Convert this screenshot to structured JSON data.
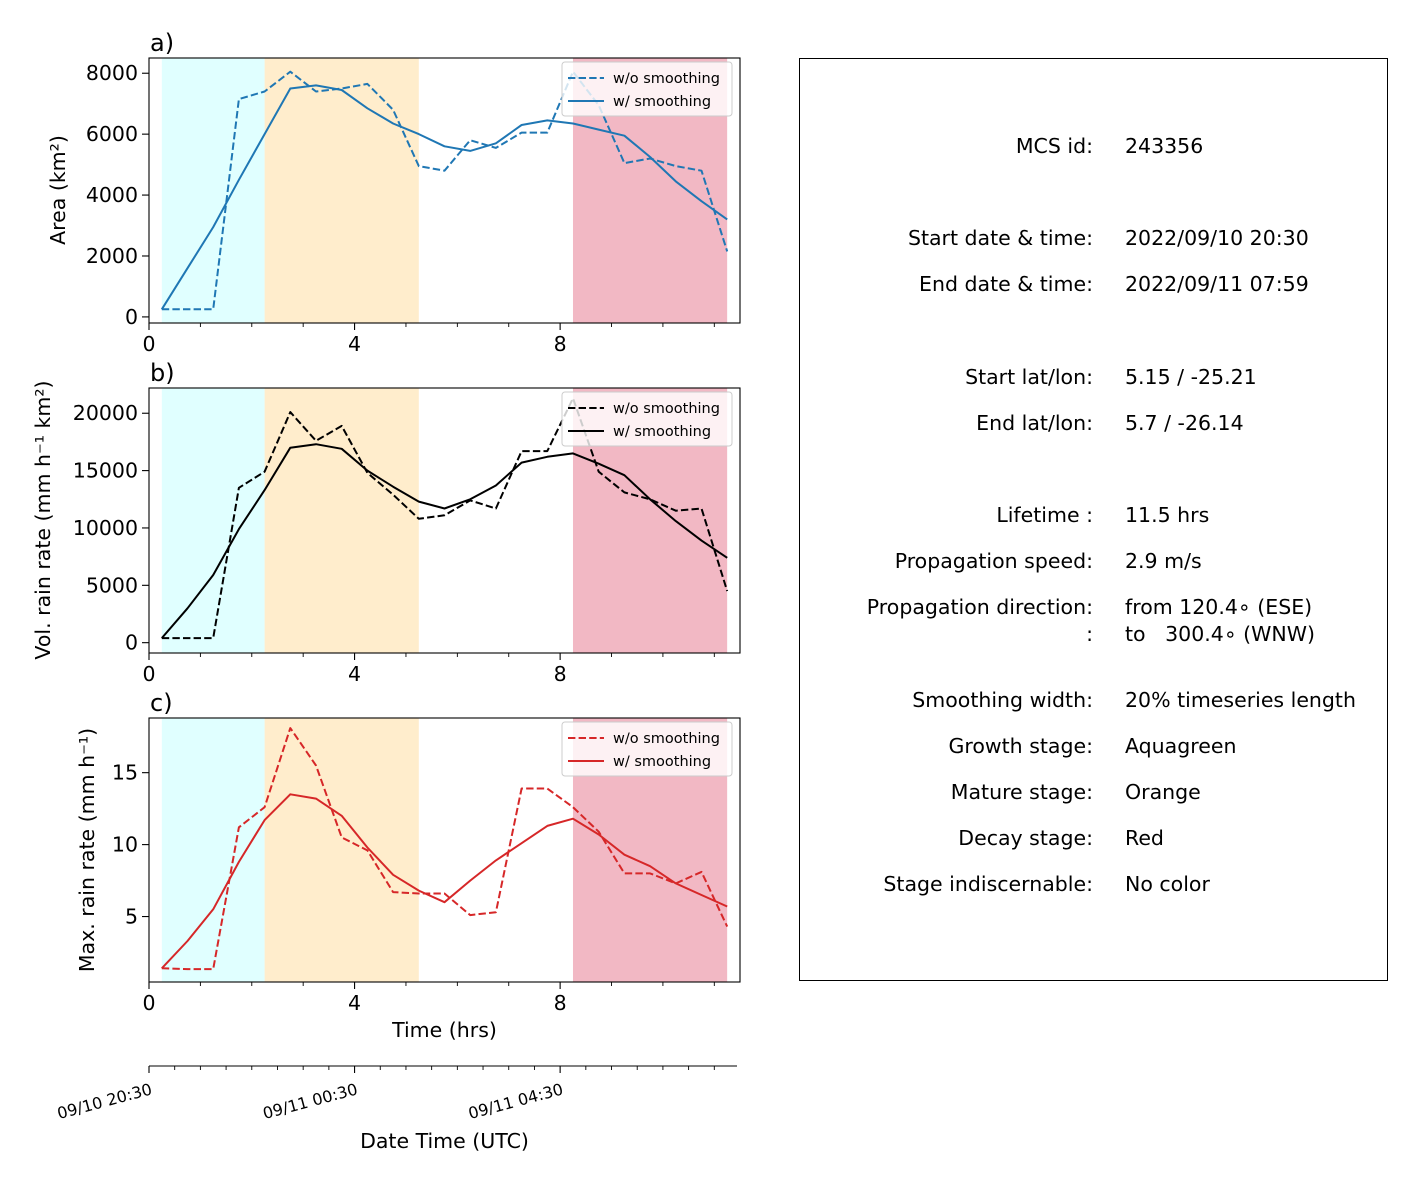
{
  "chart_data": [
    {
      "type": "line",
      "panel_label": "a)",
      "ylabel": "Area  (km²)",
      "xlim": [
        0,
        11.5
      ],
      "ylim": [
        -200,
        8500
      ],
      "xticks": [
        0,
        4,
        8
      ],
      "xtick_labels": [
        "0",
        "4",
        "8"
      ],
      "xticks_minor": [
        1,
        2,
        3,
        5,
        6,
        7,
        9,
        10,
        11
      ],
      "yticks": [
        0,
        2000,
        4000,
        6000,
        8000
      ],
      "ytick_labels": [
        "0",
        "2000",
        "4000",
        "6000",
        "8000"
      ],
      "stages": [
        {
          "stage": "growth",
          "x0": 0.25,
          "x1": 2.25,
          "color": "#e0ffff"
        },
        {
          "stage": "mature",
          "x0": 2.25,
          "x1": 5.25,
          "color": "#ffedcc"
        },
        {
          "stage": "decay",
          "x0": 8.25,
          "x1": 11.25,
          "color": "#f2b8c4"
        }
      ],
      "legend_position": "upper right",
      "series": [
        {
          "name": "w/o smoothing",
          "style": "dashed",
          "color": "#1f77b4",
          "x": [
            0.25,
            0.75,
            1.25,
            1.75,
            2.25,
            2.75,
            3.25,
            3.75,
            4.25,
            4.75,
            5.25,
            5.75,
            6.25,
            6.75,
            7.25,
            7.75,
            8.25,
            8.75,
            9.25,
            9.75,
            10.25,
            10.75,
            11.25
          ],
          "y": [
            250,
            250,
            250,
            7150,
            7400,
            8050,
            7400,
            7500,
            7650,
            6800,
            4950,
            4800,
            5800,
            5550,
            6050,
            6050,
            8050,
            6950,
            5050,
            5200,
            4950,
            4800,
            2150
          ]
        },
        {
          "name": "w/ smoothing",
          "style": "solid",
          "color": "#1f77b4",
          "x": [
            0.25,
            0.75,
            1.25,
            1.75,
            2.25,
            2.75,
            3.25,
            3.75,
            4.25,
            4.75,
            5.25,
            5.75,
            6.25,
            6.75,
            7.25,
            7.75,
            8.25,
            8.75,
            9.25,
            9.75,
            10.25,
            10.75,
            11.25
          ],
          "y": [
            250,
            1600,
            2950,
            4500,
            6000,
            7500,
            7600,
            7450,
            6850,
            6350,
            6000,
            5600,
            5450,
            5700,
            6300,
            6450,
            6350,
            6150,
            5950,
            5250,
            4450,
            3800,
            3200
          ]
        }
      ]
    },
    {
      "type": "line",
      "panel_label": "b)",
      "ylabel": "Vol. rain rate (mm h⁻¹ km²)",
      "xlim": [
        0,
        11.5
      ],
      "ylim": [
        -900,
        22200
      ],
      "xticks": [
        0,
        4,
        8
      ],
      "xtick_labels": [
        "0",
        "4",
        "8"
      ],
      "xticks_minor": [
        1,
        2,
        3,
        5,
        6,
        7,
        9,
        10,
        11
      ],
      "yticks": [
        0,
        5000,
        10000,
        15000,
        20000
      ],
      "ytick_labels": [
        "0",
        "5000",
        "10000",
        "15000",
        "20000"
      ],
      "stages": [
        {
          "stage": "growth",
          "x0": 0.25,
          "x1": 2.25,
          "color": "#e0ffff"
        },
        {
          "stage": "mature",
          "x0": 2.25,
          "x1": 5.25,
          "color": "#ffedcc"
        },
        {
          "stage": "decay",
          "x0": 8.25,
          "x1": 11.25,
          "color": "#f2b8c4"
        }
      ],
      "legend_position": "upper right",
      "series": [
        {
          "name": "w/o smoothing",
          "style": "dashed",
          "color": "#000000",
          "x": [
            0.25,
            0.75,
            1.25,
            1.75,
            2.25,
            2.75,
            3.25,
            3.75,
            4.25,
            4.75,
            5.25,
            5.75,
            6.25,
            6.75,
            7.25,
            7.75,
            8.25,
            8.75,
            9.25,
            9.75,
            10.25,
            10.75,
            11.25
          ],
          "y": [
            400,
            400,
            400,
            13500,
            14900,
            20100,
            17600,
            18900,
            14800,
            12900,
            10800,
            11100,
            12400,
            11700,
            16700,
            16700,
            21300,
            14900,
            13100,
            12500,
            11500,
            11700,
            4500
          ]
        },
        {
          "name": "w/ smoothing",
          "style": "solid",
          "color": "#000000",
          "x": [
            0.25,
            0.75,
            1.25,
            1.75,
            2.25,
            2.75,
            3.25,
            3.75,
            4.25,
            4.75,
            5.25,
            5.75,
            6.25,
            6.75,
            7.25,
            7.75,
            8.25,
            8.75,
            9.25,
            9.75,
            10.25,
            10.75,
            11.25
          ],
          "y": [
            400,
            3000,
            5900,
            9900,
            13300,
            17000,
            17300,
            16900,
            15000,
            13600,
            12300,
            11700,
            12500,
            13700,
            15700,
            16200,
            16500,
            15600,
            14600,
            12500,
            10600,
            8900,
            7400
          ]
        }
      ]
    },
    {
      "type": "line",
      "panel_label": "c)",
      "ylabel": "Max. rain rate  (mm h⁻¹)",
      "xlabel": "Time (hrs)",
      "xlim": [
        0,
        11.5
      ],
      "ylim": [
        0.45,
        18.8
      ],
      "xticks": [
        0,
        4,
        8
      ],
      "xtick_labels": [
        "0",
        "4",
        "8"
      ],
      "xticks_minor": [
        1,
        2,
        3,
        5,
        6,
        7,
        9,
        10,
        11
      ],
      "yticks": [
        5,
        10,
        15
      ],
      "ytick_labels": [
        "5",
        "10",
        "15"
      ],
      "stages": [
        {
          "stage": "growth",
          "x0": 0.25,
          "x1": 2.25,
          "color": "#e0ffff"
        },
        {
          "stage": "mature",
          "x0": 2.25,
          "x1": 5.25,
          "color": "#ffedcc"
        },
        {
          "stage": "decay",
          "x0": 8.25,
          "x1": 11.25,
          "color": "#f2b8c4"
        }
      ],
      "legend_position": "upper right",
      "series": [
        {
          "name": "w/o smoothing",
          "style": "dashed",
          "color": "#d62728",
          "x": [
            0.25,
            0.75,
            1.25,
            1.75,
            2.25,
            2.75,
            3.25,
            3.75,
            4.25,
            4.75,
            5.25,
            5.75,
            6.25,
            6.75,
            7.25,
            7.75,
            8.25,
            8.75,
            9.25,
            9.75,
            10.25,
            10.75,
            11.25
          ],
          "y": [
            1.4,
            1.35,
            1.35,
            11.2,
            12.6,
            18.1,
            15.5,
            10.5,
            9.6,
            6.7,
            6.6,
            6.6,
            5.1,
            5.3,
            13.9,
            13.9,
            12.6,
            10.9,
            8.0,
            8.0,
            7.3,
            8.1,
            4.3
          ]
        },
        {
          "name": "w/ smoothing",
          "style": "solid",
          "color": "#d62728",
          "x": [
            0.25,
            0.75,
            1.25,
            1.75,
            2.25,
            2.75,
            3.25,
            3.75,
            4.25,
            4.75,
            5.25,
            5.75,
            6.25,
            6.75,
            7.25,
            7.75,
            8.25,
            8.75,
            9.25,
            9.75,
            10.25,
            10.75,
            11.25
          ],
          "y": [
            1.4,
            3.3,
            5.5,
            8.8,
            11.7,
            13.5,
            13.2,
            12.0,
            9.8,
            7.9,
            6.8,
            6.0,
            7.5,
            8.9,
            10.1,
            11.3,
            11.8,
            10.7,
            9.3,
            8.5,
            7.3,
            6.5,
            5.7
          ]
        }
      ]
    }
  ],
  "datetime_axis": {
    "xlabel": "Date Time (UTC)",
    "ticks": [
      {
        "x": 0,
        "label": "09/10 20:30"
      },
      {
        "x": 4,
        "label": "09/11 00:30"
      },
      {
        "x": 8,
        "label": "09/11 04:30"
      }
    ],
    "minor_ticks": [
      0.5,
      1,
      1.5,
      2,
      2.5,
      3,
      3.5,
      4.5,
      5,
      5.5,
      6,
      6.5,
      7,
      7.5,
      8.5,
      9,
      9.5,
      10,
      10.5,
      11
    ]
  },
  "info_panel": {
    "rows": [
      {
        "label": "MCS id:",
        "value": "243356"
      },
      {
        "label": "Start date & time:",
        "value": "2022/09/10 20:30"
      },
      {
        "label": "End date & time:",
        "value": "2022/09/11 07:59"
      },
      {
        "label": "Start lat/lon:",
        "value": "5.15 / -25.21"
      },
      {
        "label": "End lat/lon:",
        "value": "5.7 / -26.14"
      },
      {
        "label": "Lifetime :",
        "value": "11.5 hrs"
      },
      {
        "label": "Propagation speed:",
        "value": "2.9 m/s"
      },
      {
        "label": "Propagation direction:",
        "value": "from 120.4∘ (ESE)"
      },
      {
        "label": ":",
        "value": "to   300.4∘ (WNW)"
      },
      {
        "label": "Smoothing width:",
        "value": "20% timeseries length"
      },
      {
        "label": "Growth stage:",
        "value": "Aquagreen"
      },
      {
        "label": "Mature stage:",
        "value": "Orange"
      },
      {
        "label": "Decay stage:",
        "value": "Red"
      },
      {
        "label": "Stage indiscernable:",
        "value": "No color"
      }
    ]
  }
}
